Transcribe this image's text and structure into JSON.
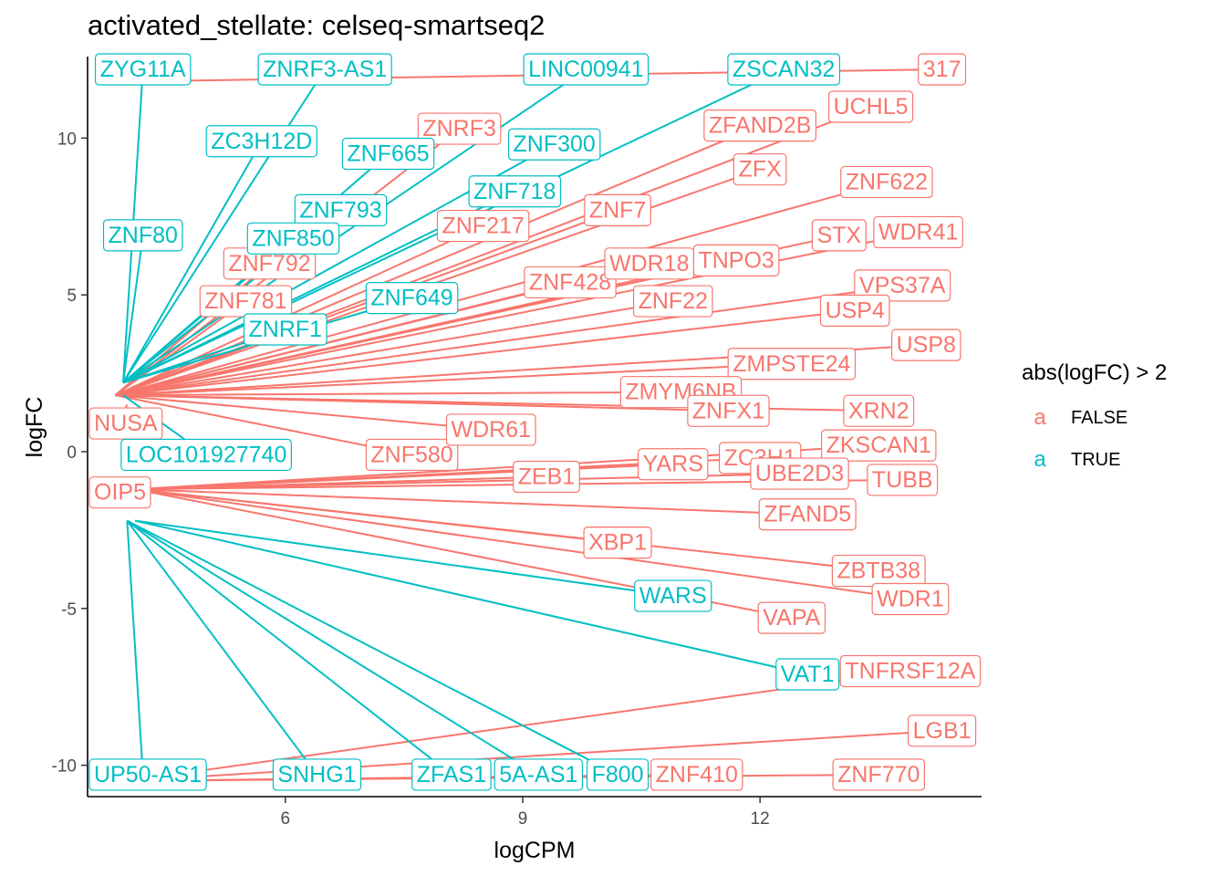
{
  "chart_data": {
    "type": "scatter",
    "title": "activated_stellate: celseq-smartseq2",
    "xlabel": "logCPM",
    "ylabel": "logFC",
    "xlim": [
      3.5,
      14.8
    ],
    "ylim": [
      -11,
      12.6
    ],
    "xticks": [
      6,
      9,
      12
    ],
    "yticks": [
      -10,
      -5,
      0,
      5,
      10
    ],
    "legend": {
      "title": "abs(logFC) > 2",
      "position": "right",
      "entries": [
        {
          "key": "a",
          "label": "FALSE",
          "color": "#F8766D"
        },
        {
          "key": "a",
          "label": "TRUE",
          "color": "#00BFC4"
        }
      ]
    },
    "series": [
      {
        "label": "FALSE",
        "color": "#F8766D",
        "points": [
          {
            "gene": "ZNRF3",
            "x": 3.85,
            "y": 1.8,
            "lx": 8.2,
            "ly": 10.3
          },
          {
            "gene": "ZNF7",
            "x": 3.85,
            "y": 1.8,
            "lx": 10.2,
            "ly": 7.7
          },
          {
            "gene": "ZFAND2B",
            "x": 3.85,
            "y": 1.8,
            "lx": 12.0,
            "ly": 10.4
          },
          {
            "gene": "UCHL5",
            "x": 3.85,
            "y": 1.8,
            "lx": 13.4,
            "ly": 11.0
          },
          {
            "gene": "ZFX",
            "x": 3.85,
            "y": 1.8,
            "lx": 12.0,
            "ly": 9.0
          },
          {
            "gene": "ZNF622",
            "x": 3.85,
            "y": 1.8,
            "lx": 13.6,
            "ly": 8.6
          },
          {
            "gene": "WDR41",
            "x": 3.85,
            "y": 1.8,
            "lx": 14.0,
            "ly": 7.0
          },
          {
            "gene": "STX",
            "x": 3.85,
            "y": 1.8,
            "lx": 13.0,
            "ly": 6.9
          },
          {
            "gene": "VPS37A",
            "x": 3.85,
            "y": 1.8,
            "lx": 13.8,
            "ly": 5.3
          },
          {
            "gene": "USP4",
            "x": 3.85,
            "y": 1.8,
            "lx": 13.2,
            "ly": 4.5
          },
          {
            "gene": "USP8",
            "x": 3.85,
            "y": 1.8,
            "lx": 14.1,
            "ly": 3.4
          },
          {
            "gene": "ZNF22",
            "x": 3.85,
            "y": 1.8,
            "lx": 10.9,
            "ly": 4.8
          },
          {
            "gene": "ZNF428",
            "x": 3.85,
            "y": 1.8,
            "lx": 9.6,
            "ly": 5.4
          },
          {
            "gene": "WDR18",
            "x": 3.85,
            "y": 1.8,
            "lx": 10.6,
            "ly": 6.0
          },
          {
            "gene": "TNPO3",
            "x": 3.85,
            "y": 1.8,
            "lx": 11.7,
            "ly": 6.1
          },
          {
            "gene": "ZNF217",
            "x": 3.85,
            "y": 1.8,
            "lx": 8.5,
            "ly": 7.2
          },
          {
            "gene": "ZMPSTE24",
            "x": 3.85,
            "y": 1.8,
            "lx": 12.4,
            "ly": 2.8
          },
          {
            "gene": "ZMYM6NB",
            "x": 3.85,
            "y": 1.8,
            "lx": 11.0,
            "ly": 1.9
          },
          {
            "gene": "ZNFX1",
            "x": 3.85,
            "y": 1.8,
            "lx": 11.6,
            "ly": 1.3
          },
          {
            "gene": "XRN2",
            "x": 3.85,
            "y": 1.8,
            "lx": 13.5,
            "ly": 1.3
          },
          {
            "gene": "ZNF580",
            "x": 3.85,
            "y": 1.8,
            "lx": 7.6,
            "ly": -0.1
          },
          {
            "gene": "WDR61",
            "x": 3.85,
            "y": 1.8,
            "lx": 8.6,
            "ly": 0.7
          },
          {
            "gene": "ZEB1",
            "x": 4.1,
            "y": -1.2,
            "lx": 9.3,
            "ly": -0.8
          },
          {
            "gene": "YARS",
            "x": 4.1,
            "y": -1.2,
            "lx": 10.9,
            "ly": -0.4
          },
          {
            "gene": "ZC3H1",
            "x": 4.1,
            "y": -1.2,
            "lx": 12.0,
            "ly": -0.2
          },
          {
            "gene": "ZKSCAN1",
            "x": 4.1,
            "y": -1.2,
            "lx": 13.5,
            "ly": 0.2
          },
          {
            "gene": "UBE2D3",
            "x": 4.1,
            "y": -1.2,
            "lx": 12.5,
            "ly": -0.7
          },
          {
            "gene": "TUBB",
            "x": 4.1,
            "y": -1.2,
            "lx": 13.8,
            "ly": -0.9
          },
          {
            "gene": "ZFAND5",
            "x": 4.1,
            "y": -1.2,
            "lx": 12.6,
            "ly": -2.0
          },
          {
            "gene": "XBP1",
            "x": 4.1,
            "y": -1.2,
            "lx": 10.2,
            "ly": -2.9
          },
          {
            "gene": "ZBTB38",
            "x": 4.1,
            "y": -1.2,
            "lx": 13.5,
            "ly": -3.8
          },
          {
            "gene": "WDR1",
            "x": 4.1,
            "y": -1.2,
            "lx": 13.9,
            "ly": -4.7
          },
          {
            "gene": "VAPA",
            "x": 4.1,
            "y": -1.2,
            "lx": 12.4,
            "ly": -5.3
          },
          {
            "gene": "ZNF410",
            "x": 4.0,
            "y": -10.5,
            "lx": 11.2,
            "ly": -10.3
          },
          {
            "gene": "ZNF770",
            "x": 4.0,
            "y": -10.5,
            "lx": 13.5,
            "ly": -10.3
          },
          {
            "gene": "TNFRSF12A",
            "x": 4.0,
            "y": -10.5,
            "lx": 13.9,
            "ly": -7.0
          },
          {
            "gene": "LGB1",
            "x": 4.0,
            "y": -10.5,
            "lx": 14.3,
            "ly": -8.9
          },
          {
            "gene": "317",
            "x": 3.85,
            "y": 11.8,
            "lx": 14.3,
            "ly": 12.5
          },
          {
            "gene": "OIP5",
            "x": 4.0,
            "y": -1.0,
            "lx": 3.9,
            "ly": -1.3
          },
          {
            "gene": "NUSA",
            "x": 4.0,
            "y": 1.5,
            "lx": 3.9,
            "ly": 0.9
          },
          {
            "gene": "ZNF781",
            "x": 3.85,
            "y": 1.8,
            "lx": 5.5,
            "ly": 4.8
          },
          {
            "gene": "ZNF792",
            "x": 3.85,
            "y": 1.8,
            "lx": 5.8,
            "ly": 6.0
          }
        ]
      },
      {
        "label": "TRUE",
        "color": "#00BFC4",
        "points": [
          {
            "gene": "ZYG11A",
            "x": 3.95,
            "y": 2.2,
            "lx": 4.2,
            "ly": 12.5
          },
          {
            "gene": "ZNRF3-AS1",
            "x": 3.95,
            "y": 2.2,
            "lx": 6.5,
            "ly": 12.5
          },
          {
            "gene": "LINC00941",
            "x": 3.95,
            "y": 2.2,
            "lx": 9.8,
            "ly": 12.5
          },
          {
            "gene": "ZSCAN32",
            "x": 3.95,
            "y": 2.2,
            "lx": 12.3,
            "ly": 12.5
          },
          {
            "gene": "ZC3H12D",
            "x": 3.95,
            "y": 2.2,
            "lx": 5.7,
            "ly": 9.9
          },
          {
            "gene": "ZNF665",
            "x": 3.95,
            "y": 2.2,
            "lx": 7.3,
            "ly": 9.5
          },
          {
            "gene": "ZNF300",
            "x": 3.95,
            "y": 2.2,
            "lx": 9.4,
            "ly": 9.8
          },
          {
            "gene": "ZNF718",
            "x": 3.95,
            "y": 2.2,
            "lx": 8.9,
            "ly": 8.3
          },
          {
            "gene": "ZNF793",
            "x": 3.95,
            "y": 2.2,
            "lx": 6.7,
            "ly": 7.7
          },
          {
            "gene": "ZNF850",
            "x": 3.95,
            "y": 2.2,
            "lx": 6.1,
            "ly": 6.8
          },
          {
            "gene": "ZNF80",
            "x": 3.95,
            "y": 2.2,
            "lx": 4.2,
            "ly": 6.9
          },
          {
            "gene": "ZNF649",
            "x": 3.95,
            "y": 2.2,
            "lx": 7.6,
            "ly": 4.9
          },
          {
            "gene": "ZNRF1",
            "x": 3.95,
            "y": 2.2,
            "lx": 6.0,
            "ly": 3.9
          },
          {
            "gene": "LOC101927740",
            "x": 3.95,
            "y": 1.8,
            "lx": 5.0,
            "ly": -0.1
          },
          {
            "gene": "WARS",
            "x": 4.1,
            "y": -2.2,
            "lx": 10.9,
            "ly": -4.6
          },
          {
            "gene": "VAT1",
            "x": 4.1,
            "y": -2.2,
            "lx": 12.6,
            "ly": -7.1
          },
          {
            "gene": "UP50-AS1",
            "x": 4.0,
            "y": -2.2,
            "lx": 4.2,
            "ly": -10.3
          },
          {
            "gene": "SNHG1",
            "x": 4.0,
            "y": -2.2,
            "lx": 6.4,
            "ly": -10.3
          },
          {
            "gene": "ZFAS1",
            "x": 4.0,
            "y": -2.2,
            "lx": 8.1,
            "ly": -10.3
          },
          {
            "gene": "5A-AS1",
            "x": 4.0,
            "y": -2.2,
            "lx": 9.2,
            "ly": -10.3
          },
          {
            "gene": "F800",
            "x": 4.0,
            "y": -2.2,
            "lx": 10.2,
            "ly": -10.3
          }
        ]
      }
    ]
  }
}
